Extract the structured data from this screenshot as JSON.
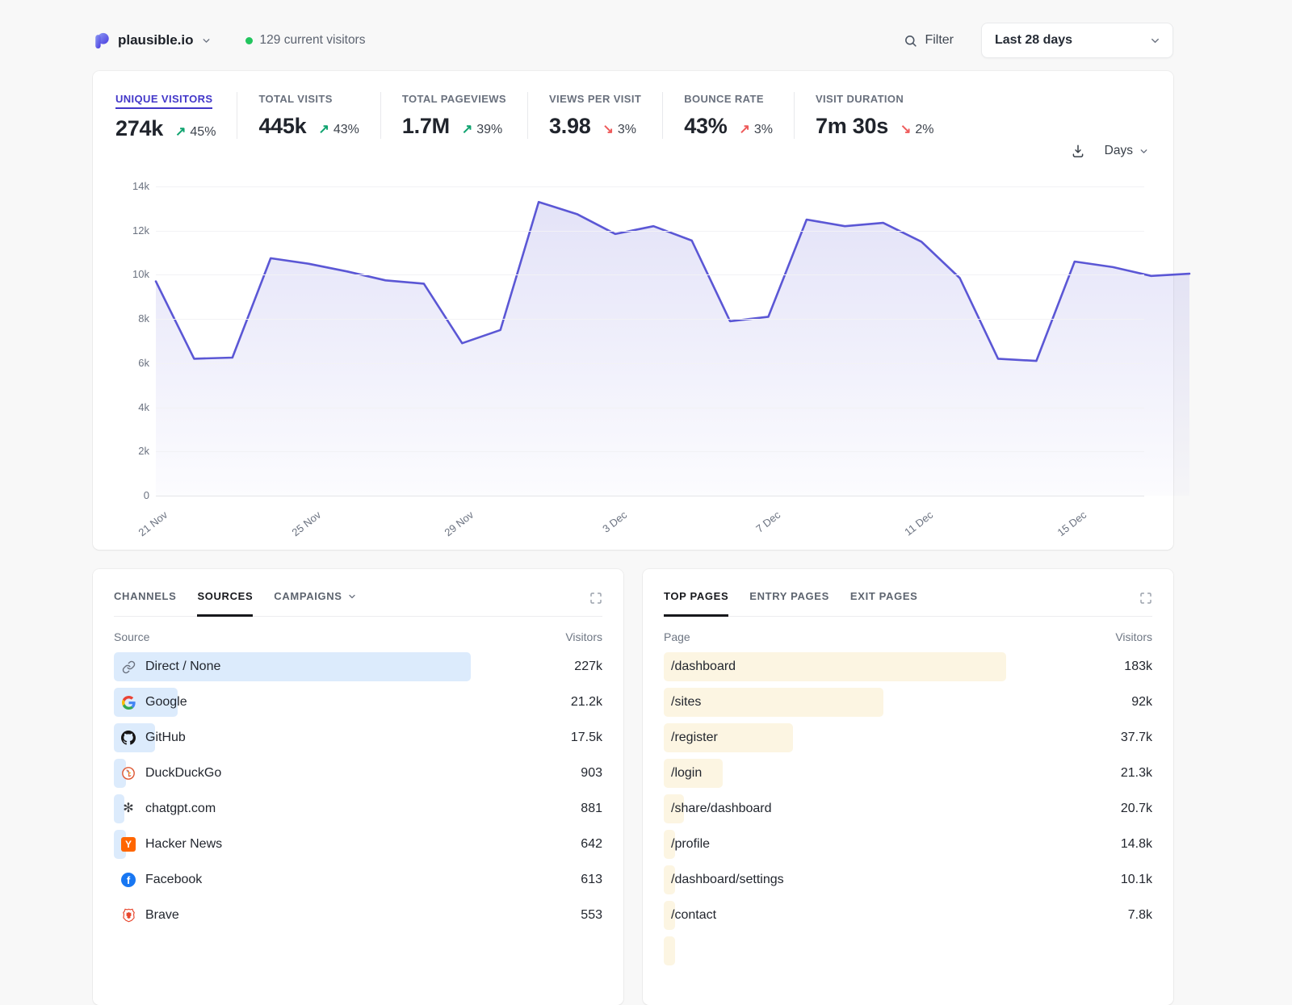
{
  "header": {
    "site": "plausible.io",
    "current_visitors": "129 current visitors",
    "filter_label": "Filter",
    "date_range": "Last 28 days"
  },
  "colors": {
    "accent_indigo": "#4237c9",
    "chart_line": "#5b57d5",
    "positive_green": "#0fa36f",
    "negative_red": "#ee5a5a",
    "live_dot_green": "#22c55e",
    "sources_bar": "#dcebfc",
    "pages_bar": "#fcf5e2"
  },
  "stats": [
    {
      "label": "UNIQUE VISITORS",
      "value": "274k",
      "direction": "up",
      "delta": "45%",
      "trend": "good",
      "active": true
    },
    {
      "label": "TOTAL VISITS",
      "value": "445k",
      "direction": "up",
      "delta": "43%",
      "trend": "good",
      "active": false
    },
    {
      "label": "TOTAL PAGEVIEWS",
      "value": "1.7M",
      "direction": "up",
      "delta": "39%",
      "trend": "good",
      "active": false
    },
    {
      "label": "VIEWS PER VISIT",
      "value": "3.98",
      "direction": "down",
      "delta": "3%",
      "trend": "bad",
      "active": false
    },
    {
      "label": "BOUNCE RATE",
      "value": "43%",
      "direction": "up",
      "delta": "3%",
      "trend": "bad",
      "active": false
    },
    {
      "label": "VISIT DURATION",
      "value": "7m 30s",
      "direction": "down",
      "delta": "2%",
      "trend": "bad",
      "active": false
    }
  ],
  "chart_controls": {
    "interval_label": "Days"
  },
  "chart_data": {
    "type": "area",
    "title": "Unique visitors by day",
    "num_points": 28,
    "values": [
      9700,
      6200,
      6250,
      10750,
      10500,
      10150,
      9750,
      9600,
      6900,
      7500,
      13300,
      12750,
      11850,
      12200,
      11550,
      7900,
      8100,
      12500,
      12200,
      12350,
      11500,
      9850,
      6200,
      6100,
      10600,
      10350,
      9950,
      10050
    ],
    "x_tick_labels": [
      "21 Nov",
      "25 Nov",
      "29 Nov",
      "3 Dec",
      "7 Dec",
      "11 Dec",
      "15 Dec"
    ],
    "x_tick_positions": [
      0,
      4,
      8,
      12,
      16,
      20,
      24
    ],
    "y_ticks": [
      0,
      2000,
      4000,
      6000,
      8000,
      10000,
      12000,
      14000
    ],
    "y_tick_labels": [
      "0",
      "2k",
      "4k",
      "6k",
      "8k",
      "10k",
      "12k",
      "14k"
    ],
    "ylim": [
      0,
      14000
    ],
    "grid": true,
    "legend": "none"
  },
  "sources_panel": {
    "tabs": [
      {
        "label": "CHANNELS",
        "active": false,
        "chevron": false
      },
      {
        "label": "SOURCES",
        "active": true,
        "chevron": false
      },
      {
        "label": "CAMPAIGNS",
        "active": false,
        "chevron": true
      }
    ],
    "columns": {
      "dimension": "Source",
      "metric": "Visitors"
    },
    "rows": [
      {
        "icon": "link",
        "name": "Direct / None",
        "value": "227k",
        "bar_pct": 73
      },
      {
        "icon": "google",
        "name": "Google",
        "value": "21.2k",
        "bar_pct": 13
      },
      {
        "icon": "github",
        "name": "GitHub",
        "value": "17.5k",
        "bar_pct": 8.5
      },
      {
        "icon": "duckduckgo",
        "name": "DuckDuckGo",
        "value": "903",
        "bar_pct": 2.4
      },
      {
        "icon": "openai",
        "name": "chatgpt.com",
        "value": "881",
        "bar_pct": 2.2
      },
      {
        "icon": "hackernews",
        "name": "Hacker News",
        "value": "642",
        "bar_pct": 2.4
      },
      {
        "icon": "facebook",
        "name": "Facebook",
        "value": "613",
        "bar_pct": 0
      },
      {
        "icon": "brave",
        "name": "Brave",
        "value": "553",
        "bar_pct": 0
      }
    ]
  },
  "pages_panel": {
    "tabs": [
      {
        "label": "TOP PAGES",
        "active": true,
        "chevron": false
      },
      {
        "label": "ENTRY PAGES",
        "active": false,
        "chevron": false
      },
      {
        "label": "EXIT PAGES",
        "active": false,
        "chevron": false
      }
    ],
    "columns": {
      "dimension": "Page",
      "metric": "Visitors"
    },
    "rows": [
      {
        "name": "/dashboard",
        "value": "183k",
        "bar_pct": 70
      },
      {
        "name": "/sites",
        "value": "92k",
        "bar_pct": 45
      },
      {
        "name": "/register",
        "value": "37.7k",
        "bar_pct": 26.5
      },
      {
        "name": "/login",
        "value": "21.3k",
        "bar_pct": 12
      },
      {
        "name": "/share/dashboard",
        "value": "20.7k",
        "bar_pct": 4.2
      },
      {
        "name": "/profile",
        "value": "14.8k",
        "bar_pct": 2.3
      },
      {
        "name": "/dashboard/settings",
        "value": "10.1k",
        "bar_pct": 2.3
      },
      {
        "name": "/contact",
        "value": "7.8k",
        "bar_pct": 2.3
      },
      {
        "name": "",
        "value": "",
        "bar_pct": 2.3,
        "partial": true
      }
    ]
  }
}
